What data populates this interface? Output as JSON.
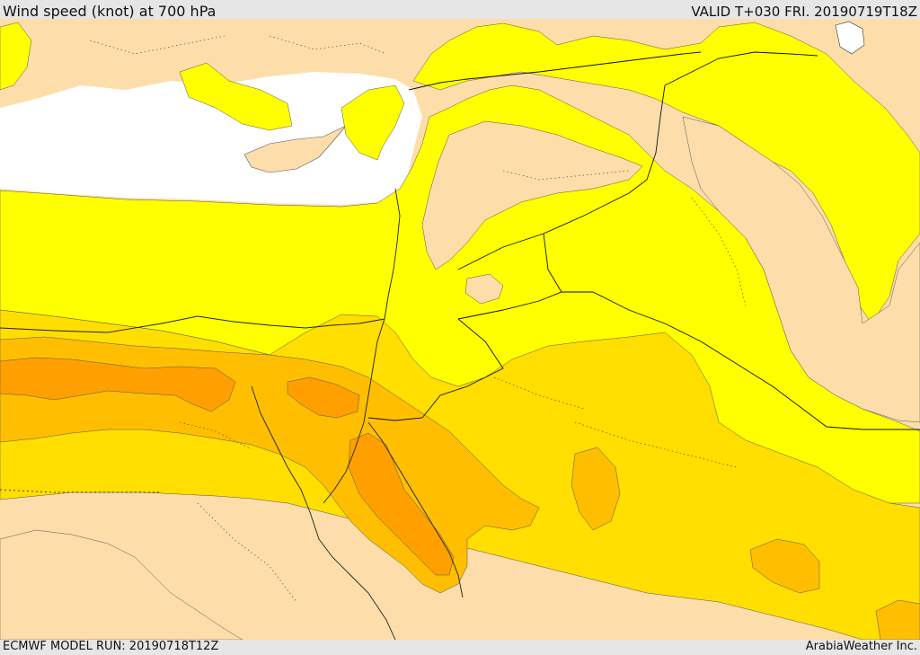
{
  "header": {
    "title": "Wind speed (knot) at 700 hPa",
    "valid": "VALID T+030 FRI. 20190719T18Z"
  },
  "footer": {
    "model_run": "ECMWF MODEL RUN: 20190718T12Z",
    "credit": "ArabiaWeather Inc."
  },
  "colors": {
    "land_calm": "#fddeaa",
    "sea": "#ffffff",
    "band_yellow": "#ffff00",
    "band_gold": "#ffde00",
    "band_amber": "#ffbf00",
    "band_orange": "#ffa000",
    "borders": "#000000"
  }
}
